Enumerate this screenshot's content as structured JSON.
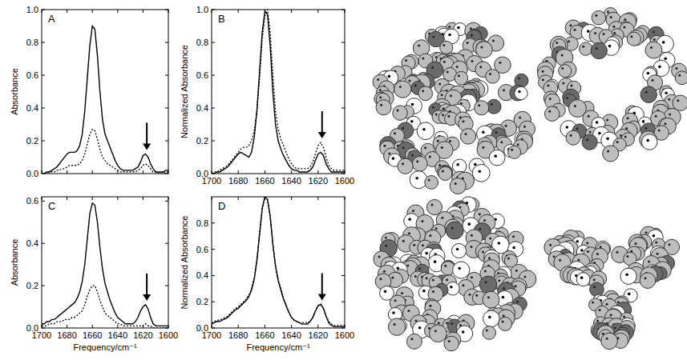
{
  "chart_data": [
    {
      "type": "line",
      "title": "A",
      "ylabel": "Absorbance",
      "tick_labels": "y",
      "x": [
        1700,
        1698,
        1696,
        1694,
        1692,
        1690,
        1688,
        1686,
        1684,
        1682,
        1680,
        1678,
        1676,
        1674,
        1672,
        1670,
        1668,
        1666,
        1664,
        1662,
        1660,
        1658,
        1656,
        1654,
        1652,
        1650,
        1648,
        1646,
        1644,
        1642,
        1640,
        1638,
        1636,
        1634,
        1632,
        1630,
        1628,
        1626,
        1624,
        1622,
        1620,
        1618,
        1616,
        1614,
        1612,
        1610,
        1608,
        1606,
        1604,
        1602,
        1600
      ],
      "xlim": [
        1700,
        1600
      ],
      "xticks": [
        1700,
        1680,
        1660,
        1640,
        1620,
        1600
      ],
      "ylim": [
        0,
        1
      ],
      "yticks": [
        {
          "value": 0,
          "label": "0.0"
        },
        0.2,
        0.4,
        0.6,
        0.8,
        {
          "value": 1,
          "label": "1.0"
        }
      ],
      "annotations": [
        {
          "type": "arrow",
          "x": 1617
        }
      ],
      "series": [
        {
          "color": "#000000",
          "line_style": "solid",
          "values": [
            0.0,
            0.0,
            0.01,
            0.01,
            0.02,
            0.03,
            0.04,
            0.06,
            0.08,
            0.1,
            0.12,
            0.13,
            0.13,
            0.13,
            0.14,
            0.17,
            0.24,
            0.38,
            0.58,
            0.78,
            0.9,
            0.88,
            0.72,
            0.5,
            0.33,
            0.24,
            0.2,
            0.16,
            0.12,
            0.08,
            0.05,
            0.03,
            0.02,
            0.02,
            0.02,
            0.02,
            0.02,
            0.03,
            0.04,
            0.07,
            0.11,
            0.12,
            0.1,
            0.06,
            0.03,
            0.01,
            0.01,
            0.01,
            0.01,
            0.02,
            0.02
          ]
        },
        {
          "color": "#000000",
          "line_style": "dotted",
          "values": [
            0.0,
            0.0,
            0.0,
            0.01,
            0.01,
            0.01,
            0.02,
            0.02,
            0.03,
            0.03,
            0.04,
            0.05,
            0.05,
            0.05,
            0.05,
            0.06,
            0.08,
            0.12,
            0.18,
            0.24,
            0.27,
            0.26,
            0.21,
            0.15,
            0.1,
            0.08,
            0.06,
            0.05,
            0.04,
            0.03,
            0.02,
            0.01,
            0.01,
            0.01,
            0.01,
            0.01,
            0.01,
            0.01,
            0.02,
            0.03,
            0.05,
            0.06,
            0.05,
            0.03,
            0.01,
            0.01,
            0.0,
            0.0,
            0.0,
            0.01,
            0.01
          ]
        }
      ]
    },
    {
      "type": "line",
      "title": "B",
      "ylabel": "Normalized Absorbance",
      "x": [
        1700,
        1698,
        1696,
        1694,
        1692,
        1690,
        1688,
        1686,
        1684,
        1682,
        1680,
        1678,
        1676,
        1674,
        1672,
        1670,
        1668,
        1666,
        1664,
        1662,
        1660,
        1658,
        1656,
        1654,
        1652,
        1650,
        1648,
        1646,
        1644,
        1642,
        1640,
        1638,
        1636,
        1634,
        1632,
        1630,
        1628,
        1626,
        1624,
        1622,
        1620,
        1618,
        1616,
        1614,
        1612,
        1610,
        1608,
        1606,
        1604,
        1602,
        1600
      ],
      "xlim": [
        1700,
        1600
      ],
      "xticks": [
        1700,
        1680,
        1660,
        1640,
        1620,
        1600
      ],
      "ylim": [
        0,
        1
      ],
      "yticks": [
        {
          "value": 0,
          "label": "0.0"
        },
        0.2,
        0.4,
        0.6,
        0.8,
        {
          "value": 1,
          "label": "1.0"
        }
      ],
      "annotations": [
        {
          "type": "arrow",
          "x": 1617
        }
      ],
      "series": [
        {
          "color": "#000000",
          "line_style": "solid",
          "values": [
            0.0,
            0.0,
            0.01,
            0.01,
            0.02,
            0.03,
            0.04,
            0.06,
            0.08,
            0.1,
            0.12,
            0.13,
            0.12,
            0.11,
            0.1,
            0.13,
            0.22,
            0.38,
            0.62,
            0.86,
            0.99,
            0.97,
            0.78,
            0.5,
            0.3,
            0.2,
            0.15,
            0.11,
            0.08,
            0.05,
            0.03,
            0.02,
            0.02,
            0.01,
            0.01,
            0.01,
            0.01,
            0.02,
            0.04,
            0.08,
            0.12,
            0.13,
            0.11,
            0.06,
            0.03,
            0.01,
            0.01,
            0.01,
            0.01,
            0.01,
            0.01
          ]
        },
        {
          "color": "#000000",
          "line_style": "dotted",
          "values": [
            0.0,
            0.01,
            0.01,
            0.02,
            0.03,
            0.04,
            0.05,
            0.07,
            0.09,
            0.11,
            0.13,
            0.15,
            0.16,
            0.16,
            0.17,
            0.2,
            0.26,
            0.38,
            0.58,
            0.82,
            0.96,
            1.0,
            0.86,
            0.6,
            0.38,
            0.27,
            0.21,
            0.17,
            0.13,
            0.09,
            0.06,
            0.04,
            0.03,
            0.03,
            0.03,
            0.03,
            0.03,
            0.04,
            0.07,
            0.12,
            0.17,
            0.19,
            0.16,
            0.1,
            0.05,
            0.03,
            0.02,
            0.02,
            0.02,
            0.02,
            0.02
          ]
        }
      ]
    },
    {
      "type": "line",
      "title": "C",
      "ylabel": "Absorbance",
      "xlabel": "Frequency/cm⁻¹",
      "x": [
        1700,
        1698,
        1696,
        1694,
        1692,
        1690,
        1688,
        1686,
        1684,
        1682,
        1680,
        1678,
        1676,
        1674,
        1672,
        1670,
        1668,
        1666,
        1664,
        1662,
        1660,
        1658,
        1656,
        1654,
        1652,
        1650,
        1648,
        1646,
        1644,
        1642,
        1640,
        1638,
        1636,
        1634,
        1632,
        1630,
        1628,
        1626,
        1624,
        1622,
        1620,
        1618,
        1616,
        1614,
        1612,
        1610,
        1608,
        1606,
        1604,
        1602,
        1600
      ],
      "xlim": [
        1700,
        1600
      ],
      "xticks": [
        1700,
        1680,
        1660,
        1640,
        1620,
        1600
      ],
      "ylim": [
        0,
        0.62
      ],
      "yticks": [
        {
          "value": 0,
          "label": "0.0"
        },
        0.2,
        0.4,
        0.6
      ],
      "annotations": [
        {
          "type": "arrow",
          "x": 1617
        }
      ],
      "series": [
        {
          "color": "#000000",
          "line_style": "solid",
          "values": [
            0.02,
            0.02,
            0.03,
            0.03,
            0.04,
            0.04,
            0.05,
            0.06,
            0.07,
            0.08,
            0.09,
            0.1,
            0.11,
            0.12,
            0.14,
            0.17,
            0.22,
            0.3,
            0.42,
            0.54,
            0.59,
            0.58,
            0.5,
            0.38,
            0.28,
            0.21,
            0.17,
            0.13,
            0.1,
            0.07,
            0.05,
            0.04,
            0.03,
            0.02,
            0.02,
            0.02,
            0.02,
            0.03,
            0.05,
            0.08,
            0.1,
            0.11,
            0.09,
            0.05,
            0.02,
            0.01,
            0.01,
            0.01,
            0.01,
            0.01,
            0.01
          ]
        },
        {
          "color": "#000000",
          "line_style": "dotted",
          "values": [
            0.01,
            0.01,
            0.01,
            0.02,
            0.02,
            0.02,
            0.03,
            0.03,
            0.03,
            0.04,
            0.04,
            0.04,
            0.05,
            0.05,
            0.06,
            0.07,
            0.08,
            0.11,
            0.15,
            0.18,
            0.2,
            0.2,
            0.17,
            0.13,
            0.1,
            0.07,
            0.06,
            0.05,
            0.04,
            0.03,
            0.02,
            0.02,
            0.01,
            0.01,
            0.01,
            0.01,
            0.01,
            0.01,
            0.01,
            0.01,
            0.01,
            0.02,
            0.01,
            0.01,
            0.0,
            0.0,
            0.0,
            0.0,
            0.0,
            0.0,
            0.0
          ]
        }
      ]
    },
    {
      "type": "line",
      "title": "D",
      "ylabel": "Normalized Absorbance",
      "xlabel": "Frequency/cm⁻¹",
      "x": [
        1700,
        1698,
        1696,
        1694,
        1692,
        1690,
        1688,
        1686,
        1684,
        1682,
        1680,
        1678,
        1676,
        1674,
        1672,
        1670,
        1668,
        1666,
        1664,
        1662,
        1660,
        1658,
        1656,
        1654,
        1652,
        1650,
        1648,
        1646,
        1644,
        1642,
        1640,
        1638,
        1636,
        1634,
        1632,
        1630,
        1628,
        1626,
        1624,
        1622,
        1620,
        1618,
        1616,
        1614,
        1612,
        1610,
        1608,
        1606,
        1604,
        1602,
        1600
      ],
      "xlim": [
        1700,
        1600
      ],
      "xticks": [
        1700,
        1680,
        1660,
        1640,
        1620,
        1600
      ],
      "ylim": [
        0,
        1
      ],
      "yticks": [
        {
          "value": 0,
          "label": "0.0"
        },
        0.2,
        0.4,
        0.6,
        0.8
      ],
      "annotations": [
        {
          "type": "arrow",
          "x": 1617
        }
      ],
      "series": [
        {
          "color": "#000000",
          "line_style": "solid",
          "values": [
            0.03,
            0.04,
            0.05,
            0.05,
            0.06,
            0.07,
            0.08,
            0.1,
            0.12,
            0.14,
            0.15,
            0.17,
            0.19,
            0.21,
            0.24,
            0.29,
            0.37,
            0.51,
            0.71,
            0.91,
            1.0,
            0.98,
            0.85,
            0.64,
            0.47,
            0.36,
            0.29,
            0.22,
            0.17,
            0.12,
            0.08,
            0.06,
            0.05,
            0.04,
            0.03,
            0.03,
            0.03,
            0.05,
            0.08,
            0.13,
            0.17,
            0.18,
            0.15,
            0.09,
            0.04,
            0.02,
            0.01,
            0.01,
            0.01,
            0.01,
            0.01
          ]
        },
        {
          "color": "#000000",
          "line_style": "dotted",
          "values": [
            0.04,
            0.05,
            0.06,
            0.06,
            0.07,
            0.08,
            0.09,
            0.11,
            0.13,
            0.15,
            0.16,
            0.18,
            0.2,
            0.22,
            0.25,
            0.3,
            0.38,
            0.52,
            0.72,
            0.91,
            1.0,
            0.98,
            0.85,
            0.64,
            0.48,
            0.37,
            0.3,
            0.23,
            0.17,
            0.12,
            0.08,
            0.06,
            0.05,
            0.04,
            0.04,
            0.04,
            0.04,
            0.05,
            0.08,
            0.13,
            0.17,
            0.18,
            0.15,
            0.09,
            0.05,
            0.03,
            0.02,
            0.02,
            0.02,
            0.02,
            0.02
          ]
        }
      ]
    }
  ]
}
